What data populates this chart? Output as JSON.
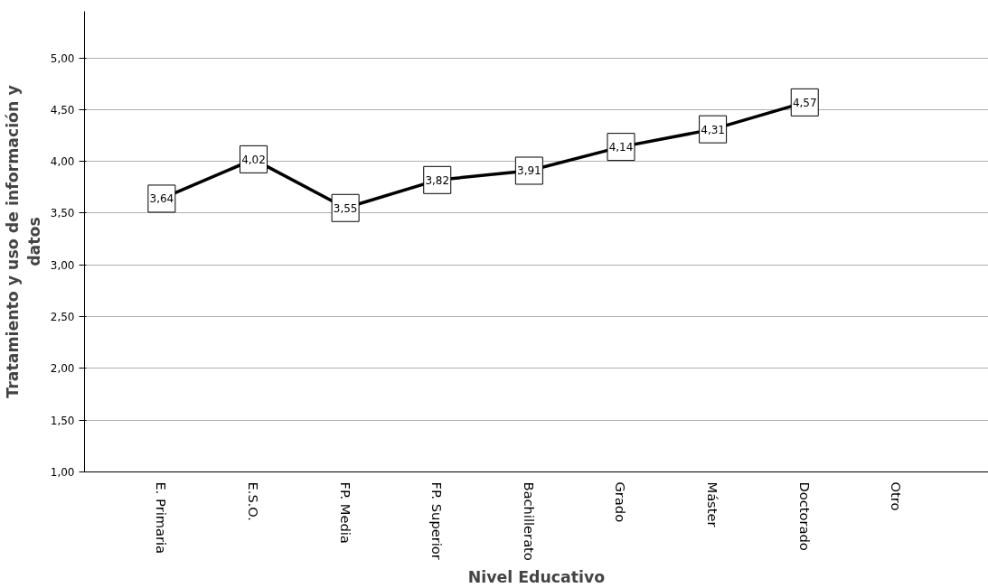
{
  "chart_data": {
    "type": "line",
    "xlabel": "Nivel Educativo",
    "ylabel": "Tratamiento y uso de información y datos",
    "categories": [
      "E. Primaria",
      "E.S.O.",
      "FP. Media",
      "FP. Superior",
      "Bachillerato",
      "Grado",
      "Máster",
      "Doctorado",
      "Otro"
    ],
    "series": [
      {
        "color": "#000000",
        "values": [
          3.64,
          4.02,
          3.55,
          3.82,
          3.91,
          4.14,
          4.31,
          4.57,
          null
        ]
      }
    ],
    "ylim": [
      1,
      5.45
    ],
    "yticks": [
      {
        "value": 1,
        "label": "1,00"
      },
      {
        "value": 1.5,
        "label": "1,50"
      },
      {
        "value": 2,
        "label": "2,00"
      },
      {
        "value": 2.5,
        "label": "2,50"
      },
      {
        "value": 3,
        "label": "3,00"
      },
      {
        "value": 3.5,
        "label": "3,50"
      },
      {
        "value": 4,
        "label": "4,00"
      },
      {
        "value": 4.5,
        "label": "4,50"
      },
      {
        "value": 5,
        "label": "5,00"
      }
    ],
    "value_labels": [
      "3,64",
      "4,02",
      "3,55",
      "3,82",
      "3,91",
      "4,14",
      "4,31",
      "4,57",
      null
    ],
    "grid": "y",
    "line_style": "solid",
    "marker": "square"
  }
}
